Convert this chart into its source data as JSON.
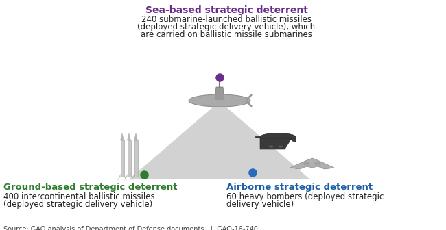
{
  "sea_title": "Sea-based strategic deterrent",
  "sea_desc_line1": "240 submarine-launched ballistic missiles",
  "sea_desc_line2": "(deployed strategic delivery vehicle), which",
  "sea_desc_line3": "are carried on ballistic missile submarines",
  "sea_title_color": "#6B2D8B",
  "sea_desc_color": "#222222",
  "sea_dot_color": "#6B2D8B",
  "ground_title": "Ground-based strategic deterrent",
  "ground_desc_line1": "400 intercontinental ballistic missiles",
  "ground_desc_line2": "(deployed strategic delivery vehicle)",
  "ground_title_color": "#2E7D2E",
  "ground_desc_color": "#222222",
  "ground_dot_color": "#2E7D2E",
  "air_title": "Airborne strategic deterrent",
  "air_desc_line1": "60 heavy bombers (deployed strategic",
  "air_desc_line2": "delivery vehicle)",
  "air_title_color": "#1A5FA8",
  "air_desc_color": "#222222",
  "air_dot_color": "#2B6CB8",
  "source_text": "Source: GAO analysis of Department of Defense documents.  |  GAO-16-740",
  "source_color": "#444444",
  "triangle_color": "#CDCDCD",
  "triangle_alpha": 0.9,
  "bg_color": "#FFFFFF"
}
